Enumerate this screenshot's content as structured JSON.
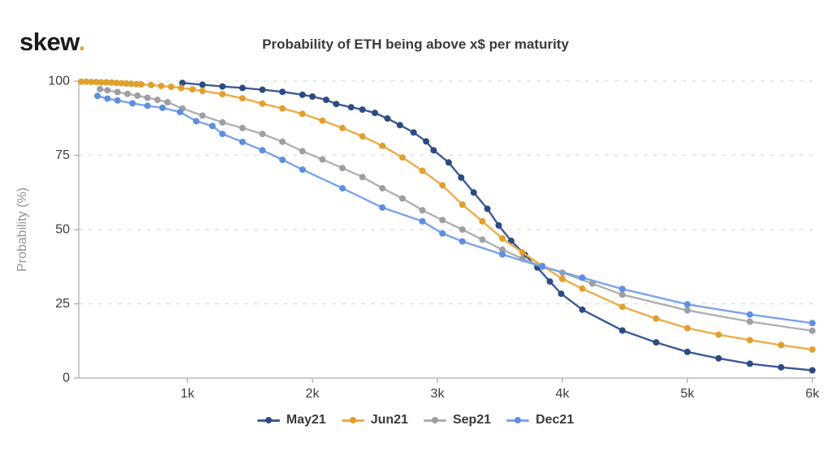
{
  "logo": {
    "text": "skew",
    "dot": "."
  },
  "chart_data": {
    "type": "line",
    "title": "Probability of ETH being above x$ per maturity",
    "ylabel": "Probability (%)",
    "xlabel": "",
    "ylim": [
      0,
      100
    ],
    "xlim_dollars": [
      130,
      6020
    ],
    "grid": "horizontal-dashed",
    "legend_position": "bottom",
    "y_ticks": [
      {
        "label": "0",
        "value": 0
      },
      {
        "label": "25",
        "value": 25
      },
      {
        "label": "50",
        "value": 50
      },
      {
        "label": "75",
        "value": 75
      },
      {
        "label": "100",
        "value": 100
      }
    ],
    "x_ticks": [
      {
        "label": "1k",
        "value": 1000
      },
      {
        "label": "2k",
        "value": 2000
      },
      {
        "label": "3k",
        "value": 3000
      },
      {
        "label": "4k",
        "value": 4000
      },
      {
        "label": "5k",
        "value": 5000
      },
      {
        "label": "6k",
        "value": 6000
      }
    ],
    "series": [
      {
        "name": "May21",
        "line_color": "#3C5A96",
        "marker_color": "#2E4B80",
        "points": [
          [
            960,
            99.4
          ],
          [
            1120,
            98.8
          ],
          [
            1280,
            98.2
          ],
          [
            1440,
            97.7
          ],
          [
            1600,
            97.1
          ],
          [
            1760,
            96.4
          ],
          [
            1920,
            95.4
          ],
          [
            2000,
            94.8
          ],
          [
            2110,
            93.7
          ],
          [
            2190,
            92.3
          ],
          [
            2310,
            91.2
          ],
          [
            2400,
            90.4
          ],
          [
            2500,
            89.3
          ],
          [
            2600,
            87.4
          ],
          [
            2700,
            85.2
          ],
          [
            2810,
            82.7
          ],
          [
            2910,
            79.7
          ],
          [
            2970,
            76.7
          ],
          [
            3090,
            72.6
          ],
          [
            3190,
            67.5
          ],
          [
            3290,
            62.5
          ],
          [
            3400,
            57.0
          ],
          [
            3490,
            51.4
          ],
          [
            3590,
            46.2
          ],
          [
            3700,
            41.5
          ],
          [
            3800,
            37.2
          ],
          [
            3900,
            32.5
          ],
          [
            3990,
            28.4
          ],
          [
            4160,
            23.0
          ],
          [
            4480,
            16.0
          ],
          [
            4750,
            12.0
          ],
          [
            5000,
            8.8
          ],
          [
            5250,
            6.6
          ],
          [
            5500,
            4.8
          ],
          [
            5750,
            3.6
          ],
          [
            6000,
            2.6
          ]
        ]
      },
      {
        "name": "Jun21",
        "line_color": "#EBAC47",
        "marker_color": "#E09F2F",
        "points": [
          [
            150,
            99.8
          ],
          [
            190,
            99.8
          ],
          [
            230,
            99.7
          ],
          [
            270,
            99.7
          ],
          [
            310,
            99.6
          ],
          [
            350,
            99.6
          ],
          [
            390,
            99.5
          ],
          [
            430,
            99.4
          ],
          [
            470,
            99.3
          ],
          [
            510,
            99.2
          ],
          [
            550,
            99.1
          ],
          [
            590,
            99.0
          ],
          [
            630,
            98.9
          ],
          [
            710,
            98.7
          ],
          [
            790,
            98.4
          ],
          [
            870,
            98.1
          ],
          [
            950,
            97.7
          ],
          [
            1040,
            97.2
          ],
          [
            1120,
            96.7
          ],
          [
            1280,
            95.6
          ],
          [
            1440,
            94.2
          ],
          [
            1600,
            92.4
          ],
          [
            1760,
            90.8
          ],
          [
            1920,
            89.0
          ],
          [
            2080,
            86.7
          ],
          [
            2240,
            84.2
          ],
          [
            2400,
            81.4
          ],
          [
            2560,
            78.2
          ],
          [
            2720,
            74.3
          ],
          [
            2880,
            69.8
          ],
          [
            3040,
            64.9
          ],
          [
            3200,
            58.4
          ],
          [
            3360,
            52.8
          ],
          [
            3520,
            47.0
          ],
          [
            3680,
            42.3
          ],
          [
            3840,
            37.8
          ],
          [
            4000,
            33.4
          ],
          [
            4160,
            30.1
          ],
          [
            4480,
            24.0
          ],
          [
            4750,
            20.0
          ],
          [
            5000,
            16.8
          ],
          [
            5250,
            14.6
          ],
          [
            5500,
            12.8
          ],
          [
            5750,
            11.1
          ],
          [
            6000,
            9.6
          ]
        ]
      },
      {
        "name": "Sep21",
        "line_color": "#B0B0B0",
        "marker_color": "#9C9FA3",
        "points": [
          [
            300,
            97.3
          ],
          [
            360,
            96.9
          ],
          [
            440,
            96.3
          ],
          [
            520,
            95.7
          ],
          [
            600,
            95.1
          ],
          [
            680,
            94.4
          ],
          [
            760,
            93.7
          ],
          [
            840,
            92.9
          ],
          [
            960,
            90.8
          ],
          [
            1120,
            88.4
          ],
          [
            1280,
            86.1
          ],
          [
            1440,
            84.2
          ],
          [
            1600,
            82.2
          ],
          [
            1760,
            79.6
          ],
          [
            1920,
            76.4
          ],
          [
            2080,
            73.6
          ],
          [
            2240,
            70.7
          ],
          [
            2400,
            67.7
          ],
          [
            2560,
            63.9
          ],
          [
            2720,
            60.5
          ],
          [
            2880,
            56.5
          ],
          [
            3040,
            53.2
          ],
          [
            3200,
            50.0
          ],
          [
            3360,
            46.6
          ],
          [
            3520,
            43.2
          ],
          [
            3680,
            40.2
          ],
          [
            3840,
            37.6
          ],
          [
            4000,
            35.5
          ],
          [
            4240,
            31.8
          ],
          [
            4480,
            28.1
          ],
          [
            5000,
            22.8
          ],
          [
            5500,
            19.0
          ],
          [
            6000,
            15.9
          ]
        ]
      },
      {
        "name": "Dec21",
        "line_color": "#7AA3EA",
        "marker_color": "#5D8EE0",
        "points": [
          [
            280,
            95.0
          ],
          [
            360,
            94.1
          ],
          [
            440,
            93.5
          ],
          [
            560,
            92.5
          ],
          [
            680,
            91.7
          ],
          [
            800,
            91.0
          ],
          [
            940,
            89.6
          ],
          [
            1070,
            86.5
          ],
          [
            1200,
            84.9
          ],
          [
            1280,
            82.2
          ],
          [
            1440,
            79.5
          ],
          [
            1600,
            76.7
          ],
          [
            1760,
            73.5
          ],
          [
            1920,
            70.2
          ],
          [
            2240,
            63.9
          ],
          [
            2560,
            57.4
          ],
          [
            2880,
            52.8
          ],
          [
            3040,
            48.7
          ],
          [
            3200,
            46.0
          ],
          [
            3520,
            41.6
          ],
          [
            3840,
            37.5
          ],
          [
            4160,
            33.8
          ],
          [
            4480,
            30.0
          ],
          [
            5000,
            24.8
          ],
          [
            5500,
            21.4
          ],
          [
            6000,
            18.5
          ]
        ]
      }
    ],
    "style_colors": {
      "gridline": "#dedede",
      "axis": "#adadad",
      "tick_text": "#3d3d3d",
      "y_axis_title": "#949494",
      "title_text": "#3a3a3a",
      "logo_dot": "#e0a43c"
    }
  }
}
